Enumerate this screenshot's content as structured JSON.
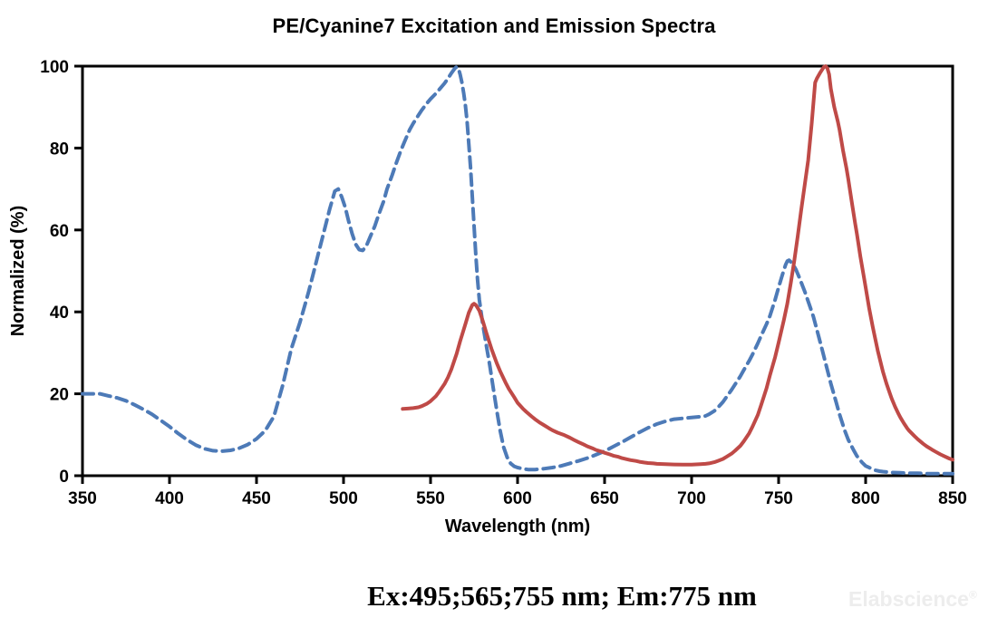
{
  "title": "PE/Cyanine7 Excitation and Emission Spectra",
  "annotation": "Ex:495;565;755 nm; Em:775 nm",
  "watermark": {
    "text": "Elabscience",
    "registered_mark": "®"
  },
  "colors": {
    "axis": "#000000",
    "background": "#ffffff",
    "excitation": "#4d7ab7",
    "emission": "#bf4a47",
    "watermark": "#ededed"
  },
  "chart_data": {
    "type": "line",
    "title": "PE/Cyanine7 Excitation and Emission Spectra",
    "xlabel": "Wavelength (nm)",
    "ylabel": "Normalized (%)",
    "xlim": [
      350,
      850
    ],
    "ylim": [
      0,
      100
    ],
    "x_ticks": [
      350,
      400,
      450,
      500,
      550,
      600,
      650,
      700,
      750,
      800,
      850
    ],
    "y_ticks": [
      0,
      20,
      40,
      60,
      80,
      100
    ],
    "grid": false,
    "legend": "none",
    "series": [
      {
        "name": "Excitation",
        "style": "dashed",
        "color": "#4d7ab7",
        "peaks_nm": [
          495,
          565,
          755
        ],
        "points": [
          [
            350,
            20
          ],
          [
            355,
            20
          ],
          [
            360,
            20
          ],
          [
            365,
            19.5
          ],
          [
            370,
            19
          ],
          [
            375,
            18.3
          ],
          [
            380,
            17.3
          ],
          [
            385,
            16.2
          ],
          [
            390,
            15
          ],
          [
            395,
            13.5
          ],
          [
            400,
            12
          ],
          [
            405,
            10.3
          ],
          [
            410,
            8.8
          ],
          [
            415,
            7.5
          ],
          [
            420,
            6.6
          ],
          [
            425,
            6.1
          ],
          [
            430,
            6
          ],
          [
            435,
            6.2
          ],
          [
            440,
            6.7
          ],
          [
            445,
            7.6
          ],
          [
            450,
            9
          ],
          [
            455,
            11
          ],
          [
            460,
            14.5
          ],
          [
            465,
            22
          ],
          [
            470,
            31
          ],
          [
            475,
            37.5
          ],
          [
            478,
            42
          ],
          [
            480,
            45
          ],
          [
            483,
            50
          ],
          [
            486,
            55
          ],
          [
            489,
            60
          ],
          [
            492,
            65
          ],
          [
            495,
            69.5
          ],
          [
            497,
            70
          ],
          [
            499,
            68
          ],
          [
            501,
            65.5
          ],
          [
            503,
            62
          ],
          [
            505,
            59
          ],
          [
            507,
            56.5
          ],
          [
            509,
            55.2
          ],
          [
            511,
            55
          ],
          [
            513,
            56
          ],
          [
            515,
            58
          ],
          [
            518,
            61
          ],
          [
            520,
            63.5
          ],
          [
            523,
            67
          ],
          [
            525,
            70
          ],
          [
            528,
            73.5
          ],
          [
            530,
            76
          ],
          [
            533,
            79.5
          ],
          [
            535,
            81.5
          ],
          [
            538,
            84.5
          ],
          [
            540,
            86
          ],
          [
            543,
            88
          ],
          [
            545,
            89.3
          ],
          [
            548,
            91
          ],
          [
            550,
            92
          ],
          [
            553,
            93.3
          ],
          [
            555,
            94.3
          ],
          [
            558,
            95.8
          ],
          [
            560,
            97
          ],
          [
            562,
            98.3
          ],
          [
            564,
            99.5
          ],
          [
            565,
            99.8
          ],
          [
            566,
            99.5
          ],
          [
            567,
            98
          ],
          [
            568,
            96
          ],
          [
            569,
            93.5
          ],
          [
            570,
            90.5
          ],
          [
            571,
            86.5
          ],
          [
            572,
            81
          ],
          [
            573,
            75
          ],
          [
            574,
            68
          ],
          [
            575,
            61
          ],
          [
            576,
            54
          ],
          [
            577,
            48
          ],
          [
            578,
            43
          ],
          [
            580,
            37
          ],
          [
            582,
            32
          ],
          [
            584,
            27
          ],
          [
            586,
            21.5
          ],
          [
            588,
            16
          ],
          [
            590,
            11
          ],
          [
            592,
            7
          ],
          [
            594,
            4.5
          ],
          [
            596,
            3
          ],
          [
            598,
            2.3
          ],
          [
            600,
            2
          ],
          [
            603,
            1.7
          ],
          [
            606,
            1.5
          ],
          [
            610,
            1.5
          ],
          [
            615,
            1.7
          ],
          [
            620,
            2
          ],
          [
            625,
            2.4
          ],
          [
            630,
            3
          ],
          [
            635,
            3.6
          ],
          [
            640,
            4.3
          ],
          [
            645,
            5.1
          ],
          [
            650,
            6
          ],
          [
            655,
            7.1
          ],
          [
            660,
            8.2
          ],
          [
            665,
            9.4
          ],
          [
            670,
            10.6
          ],
          [
            675,
            11.7
          ],
          [
            680,
            12.6
          ],
          [
            685,
            13.3
          ],
          [
            690,
            13.8
          ],
          [
            695,
            14
          ],
          [
            700,
            14.2
          ],
          [
            705,
            14.4
          ],
          [
            708,
            14.6
          ],
          [
            710,
            15
          ],
          [
            713,
            15.8
          ],
          [
            715,
            16.6
          ],
          [
            718,
            18
          ],
          [
            720,
            19.2
          ],
          [
            723,
            21
          ],
          [
            725,
            22.3
          ],
          [
            728,
            24.3
          ],
          [
            730,
            25.8
          ],
          [
            733,
            28
          ],
          [
            735,
            29.6
          ],
          [
            738,
            32.3
          ],
          [
            740,
            34.2
          ],
          [
            743,
            37
          ],
          [
            745,
            39
          ],
          [
            748,
            43
          ],
          [
            750,
            46
          ],
          [
            752,
            48.8
          ],
          [
            754,
            51.5
          ],
          [
            755,
            52.4
          ],
          [
            756,
            52.6
          ],
          [
            758,
            51.8
          ],
          [
            760,
            50.3
          ],
          [
            762,
            48.3
          ],
          [
            765,
            45
          ],
          [
            768,
            41.3
          ],
          [
            770,
            38.8
          ],
          [
            773,
            34
          ],
          [
            775,
            30.8
          ],
          [
            778,
            25.8
          ],
          [
            780,
            22.5
          ],
          [
            783,
            18
          ],
          [
            785,
            15
          ],
          [
            788,
            11
          ],
          [
            790,
            8.8
          ],
          [
            793,
            6.3
          ],
          [
            795,
            4.8
          ],
          [
            798,
            3.2
          ],
          [
            800,
            2.4
          ],
          [
            803,
            1.8
          ],
          [
            805,
            1.4
          ],
          [
            808,
            1.1
          ],
          [
            810,
            1
          ],
          [
            815,
            0.8
          ],
          [
            820,
            0.7
          ],
          [
            825,
            0.6
          ],
          [
            830,
            0.6
          ],
          [
            835,
            0.5
          ],
          [
            840,
            0.5
          ],
          [
            845,
            0.5
          ],
          [
            850,
            0.5
          ]
        ]
      },
      {
        "name": "Emission",
        "style": "solid",
        "color": "#bf4a47",
        "peaks_nm": [
          775
        ],
        "points": [
          [
            534,
            16.3
          ],
          [
            537,
            16.4
          ],
          [
            540,
            16.5
          ],
          [
            543,
            16.7
          ],
          [
            545,
            17
          ],
          [
            548,
            17.6
          ],
          [
            550,
            18.2
          ],
          [
            553,
            19.4
          ],
          [
            555,
            20.5
          ],
          [
            558,
            22.4
          ],
          [
            560,
            24
          ],
          [
            562,
            26
          ],
          [
            565,
            29.8
          ],
          [
            567,
            32.8
          ],
          [
            570,
            37
          ],
          [
            572,
            39.8
          ],
          [
            574,
            41.7
          ],
          [
            575,
            42
          ],
          [
            576,
            41.7
          ],
          [
            578,
            40.3
          ],
          [
            580,
            37.8
          ],
          [
            582,
            35
          ],
          [
            585,
            31
          ],
          [
            588,
            27.5
          ],
          [
            590,
            25.5
          ],
          [
            593,
            22.8
          ],
          [
            595,
            21.2
          ],
          [
            598,
            19.2
          ],
          [
            600,
            17.8
          ],
          [
            603,
            16.4
          ],
          [
            605,
            15.6
          ],
          [
            608,
            14.5
          ],
          [
            610,
            13.8
          ],
          [
            613,
            12.9
          ],
          [
            615,
            12.4
          ],
          [
            618,
            11.6
          ],
          [
            620,
            11.1
          ],
          [
            623,
            10.5
          ],
          [
            625,
            10.2
          ],
          [
            627,
            9.9
          ],
          [
            630,
            9.3
          ],
          [
            633,
            8.6
          ],
          [
            635,
            8.2
          ],
          [
            638,
            7.6
          ],
          [
            640,
            7.2
          ],
          [
            643,
            6.7
          ],
          [
            645,
            6.3
          ],
          [
            648,
            5.9
          ],
          [
            650,
            5.6
          ],
          [
            653,
            5.2
          ],
          [
            655,
            4.9
          ],
          [
            658,
            4.6
          ],
          [
            660,
            4.3
          ],
          [
            663,
            4
          ],
          [
            665,
            3.8
          ],
          [
            668,
            3.6
          ],
          [
            670,
            3.4
          ],
          [
            673,
            3.2
          ],
          [
            675,
            3.1
          ],
          [
            678,
            3
          ],
          [
            680,
            2.9
          ],
          [
            685,
            2.8
          ],
          [
            690,
            2.75
          ],
          [
            695,
            2.7
          ],
          [
            700,
            2.7
          ],
          [
            705,
            2.8
          ],
          [
            708,
            2.9
          ],
          [
            710,
            3
          ],
          [
            713,
            3.3
          ],
          [
            715,
            3.6
          ],
          [
            718,
            4.1
          ],
          [
            720,
            4.6
          ],
          [
            723,
            5.4
          ],
          [
            725,
            6.1
          ],
          [
            728,
            7.3
          ],
          [
            730,
            8.4
          ],
          [
            733,
            10.3
          ],
          [
            735,
            12
          ],
          [
            738,
            14.8
          ],
          [
            740,
            17.3
          ],
          [
            743,
            21.3
          ],
          [
            745,
            24.5
          ],
          [
            748,
            29
          ],
          [
            750,
            32.5
          ],
          [
            753,
            38
          ],
          [
            755,
            42
          ],
          [
            757,
            47
          ],
          [
            759,
            52.5
          ],
          [
            761,
            58.5
          ],
          [
            763,
            65
          ],
          [
            765,
            71
          ],
          [
            767,
            77
          ],
          [
            769,
            86
          ],
          [
            770,
            91
          ],
          [
            771,
            96
          ],
          [
            772,
            97
          ],
          [
            774,
            98.5
          ],
          [
            776,
            99.8
          ],
          [
            777,
            100
          ],
          [
            778,
            99.5
          ],
          [
            779,
            98
          ],
          [
            780,
            94.5
          ],
          [
            782,
            90
          ],
          [
            784,
            86.5
          ],
          [
            785,
            84.5
          ],
          [
            787,
            79.5
          ],
          [
            789,
            75
          ],
          [
            790,
            72.5
          ],
          [
            792,
            67
          ],
          [
            794,
            61.5
          ],
          [
            795,
            59
          ],
          [
            797,
            53.5
          ],
          [
            799,
            48.5
          ],
          [
            800,
            46
          ],
          [
            802,
            41
          ],
          [
            804,
            36.5
          ],
          [
            805,
            34.5
          ],
          [
            807,
            30.5
          ],
          [
            809,
            27
          ],
          [
            810,
            25.3
          ],
          [
            812,
            22.5
          ],
          [
            814,
            20
          ],
          [
            815,
            18.8
          ],
          [
            817,
            16.8
          ],
          [
            819,
            15
          ],
          [
            820,
            14.2
          ],
          [
            822,
            12.8
          ],
          [
            824,
            11.5
          ],
          [
            825,
            11
          ],
          [
            828,
            9.7
          ],
          [
            830,
            8.9
          ],
          [
            833,
            7.8
          ],
          [
            835,
            7.2
          ],
          [
            838,
            6.4
          ],
          [
            840,
            5.9
          ],
          [
            843,
            5.2
          ],
          [
            845,
            4.8
          ],
          [
            848,
            4.2
          ],
          [
            850,
            3.9
          ]
        ]
      }
    ]
  }
}
